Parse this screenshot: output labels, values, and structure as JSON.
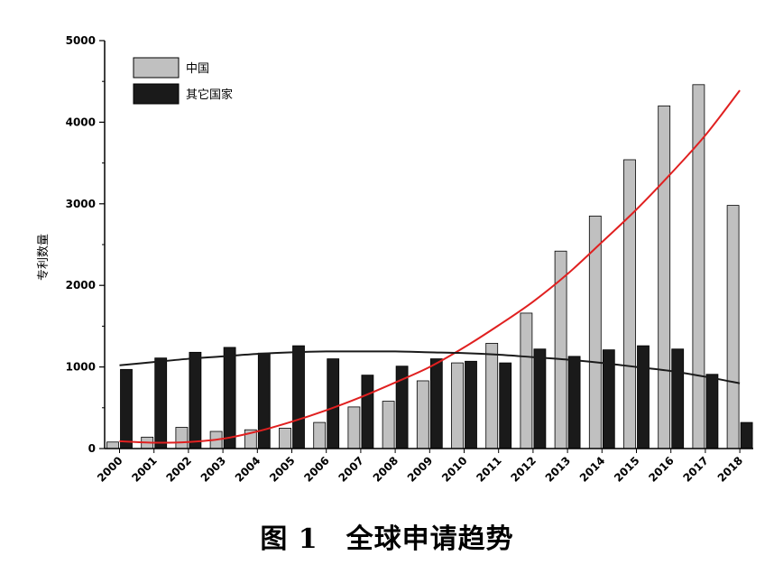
{
  "caption": "图 1　全球申请趋势",
  "chart_data": {
    "type": "bar",
    "title": "",
    "xlabel": "",
    "ylabel": "专利数量",
    "ylim": [
      0,
      5000
    ],
    "yticks": [
      0,
      1000,
      2000,
      3000,
      4000,
      5000
    ],
    "categories": [
      "2000",
      "2001",
      "2002",
      "2003",
      "2004",
      "2005",
      "2006",
      "2007",
      "2008",
      "2009",
      "2010",
      "2011",
      "2012",
      "2013",
      "2014",
      "2015",
      "2016",
      "2017",
      "2018"
    ],
    "series": [
      {
        "name": "中国",
        "color": "#c0c0c0",
        "values": [
          80,
          140,
          260,
          210,
          230,
          250,
          320,
          510,
          580,
          830,
          1050,
          1290,
          1660,
          2420,
          2850,
          3540,
          4200,
          4460,
          2980
        ]
      },
      {
        "name": "其它国家",
        "color": "#1a1a1a",
        "values": [
          970,
          1110,
          1180,
          1240,
          1170,
          1260,
          1100,
          900,
          1010,
          1100,
          1070,
          1050,
          1220,
          1130,
          1210,
          1260,
          1220,
          910,
          320
        ]
      }
    ],
    "trendlines": [
      {
        "series": "中国",
        "color": "#e02020",
        "values": [
          90,
          72,
          80,
          120,
          210,
          330,
          470,
          630,
          810,
          1000,
          1240,
          1510,
          1800,
          2140,
          2530,
          2930,
          3370,
          3840,
          4390
        ]
      },
      {
        "series": "其它国家",
        "color": "#1a1a1a",
        "values": [
          1020,
          1060,
          1100,
          1130,
          1160,
          1180,
          1190,
          1190,
          1190,
          1180,
          1170,
          1150,
          1120,
          1090,
          1050,
          1000,
          950,
          880,
          800
        ]
      }
    ],
    "legend_position": "top-left",
    "grid": false
  }
}
